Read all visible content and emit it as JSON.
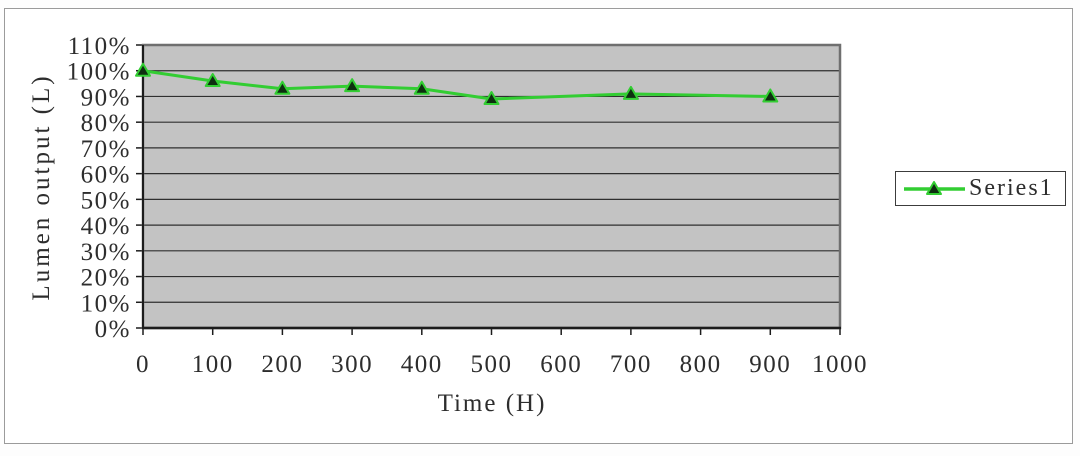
{
  "chart_data": {
    "type": "line",
    "title": "",
    "xlabel": "Time (H)",
    "ylabel": "Lumen output (L)",
    "legend_position": "right",
    "x": [
      0,
      100,
      200,
      300,
      400,
      500,
      700,
      900
    ],
    "series": [
      {
        "name": "Series1",
        "values": [
          100,
          96,
          93,
          94,
          93,
          89,
          91,
          90
        ]
      }
    ],
    "x_ticks": [
      0,
      100,
      200,
      300,
      400,
      500,
      600,
      700,
      800,
      900,
      1000
    ],
    "y_ticks": [
      "110%",
      "100%",
      "90%",
      "80%",
      "70%",
      "60%",
      "50%",
      "40%",
      "30%",
      "20%",
      "10%",
      "0%"
    ],
    "xlim": [
      0,
      1000
    ],
    "ylim_percent": [
      0,
      110
    ],
    "grid": "horizontal",
    "colors": {
      "line": "#32cd32",
      "marker_fill": "#0e2f10",
      "plot_bg": "#c3c3c3",
      "grid_line": "#2f2f2f",
      "plot_border": "#6f6f6f",
      "axis_line": "#1c1c1c",
      "axis_text": "#2d2d2d",
      "frame_border": "#9b9b9b",
      "legend_border": "#3c3c3c"
    }
  }
}
